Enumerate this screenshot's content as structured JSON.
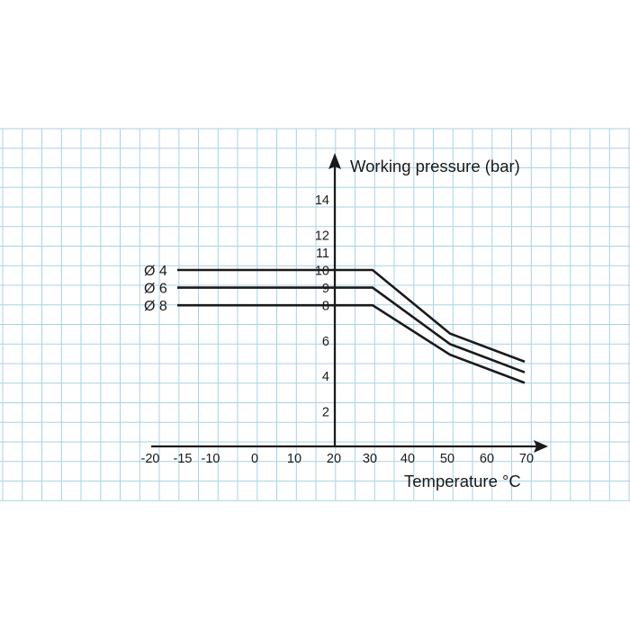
{
  "chart_data": {
    "type": "line",
    "title": "",
    "xlabel": "Temperature °C",
    "ylabel": "Working pressure (bar)",
    "x_ticks": [
      "-20",
      "-15",
      "-10",
      "0",
      "10",
      "20",
      "30",
      "40",
      "50",
      "60",
      "70"
    ],
    "y_ticks": [
      "2",
      "4",
      "6",
      "8",
      "9",
      "10",
      "11",
      "12",
      "14"
    ],
    "grid": true,
    "series": [
      {
        "name": "Ø 4",
        "x": [
          "-20",
          "30",
          "50",
          "70"
        ],
        "y": [
          10,
          10,
          6.4,
          4.8
        ]
      },
      {
        "name": "Ø 6",
        "x": [
          "-20",
          "30",
          "50",
          "70"
        ],
        "y": [
          9,
          9,
          5.8,
          4.2
        ]
      },
      {
        "name": "Ø 8",
        "x": [
          "-20",
          "30",
          "50",
          "70"
        ],
        "y": [
          8,
          8,
          5.2,
          3.6
        ]
      }
    ]
  },
  "colors": {
    "grid": "#a9d2e6",
    "line": "#1a1a1a",
    "background": "#ffffff"
  }
}
